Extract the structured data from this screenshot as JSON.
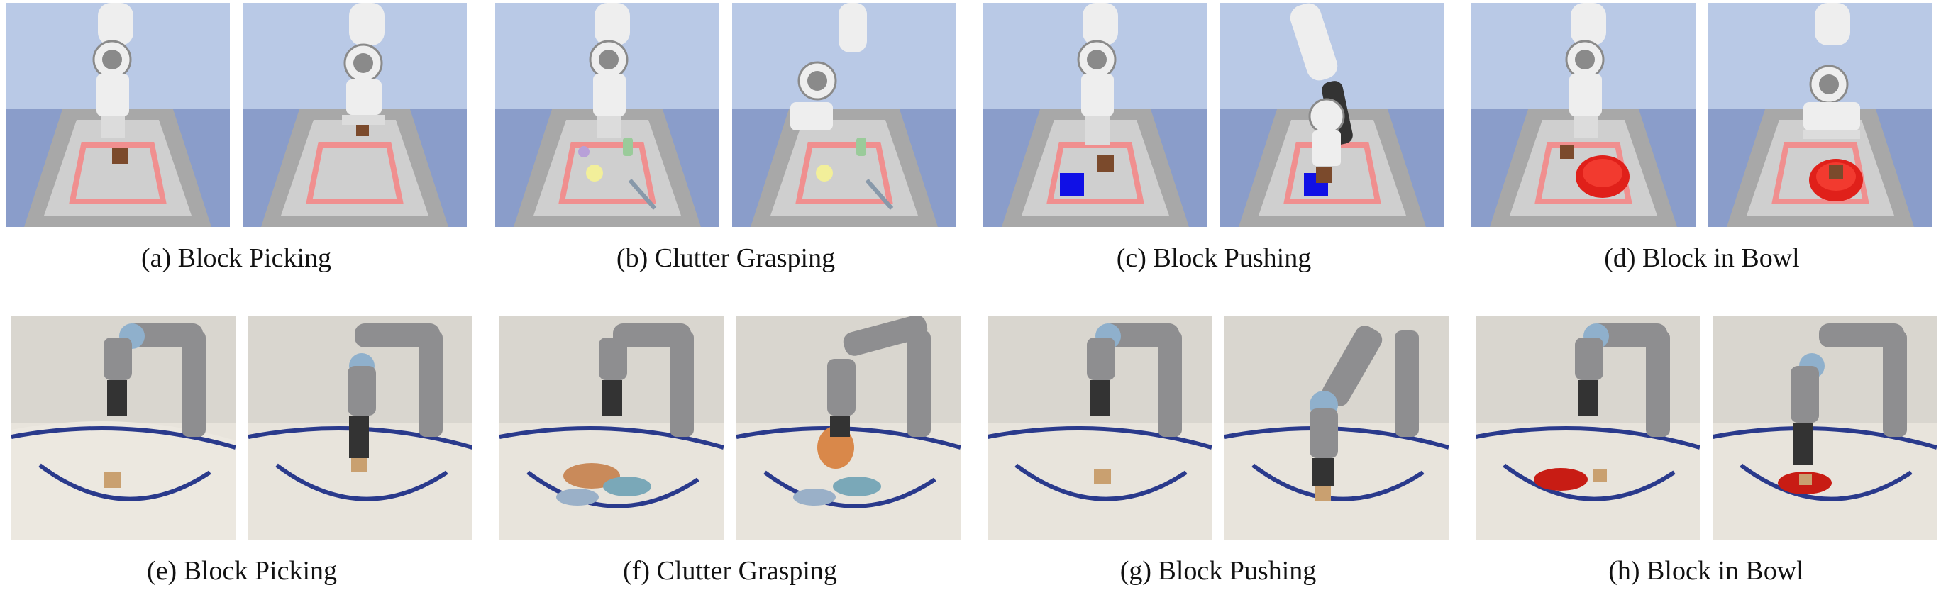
{
  "figure": {
    "simulation": {
      "captions": [
        {
          "label": "(a) Block Picking"
        },
        {
          "label": "(b) Clutter Grasping"
        },
        {
          "label": "(c) Block Pushing"
        },
        {
          "label": "(d) Block in Bowl"
        }
      ]
    },
    "real": {
      "captions": [
        {
          "label": "(e) Block Picking"
        },
        {
          "label": "(f) Clutter Grasping"
        },
        {
          "label": "(g) Block Pushing"
        },
        {
          "label": "(h) Block in Bowl"
        }
      ]
    }
  },
  "colors": {
    "sim_sky": "#b9c9e6",
    "sim_wall": "#7f93c4",
    "tray_floor": "#cfcfcf",
    "tray_rim": "#a8a8a8",
    "target_zone": "#f08f8f",
    "robot_body": "#eeeeee",
    "robot_joint": "#8a8a8a",
    "block": "#7b4a2c",
    "push_goal": "#1010e6",
    "bowl": "#e0201a",
    "real_wall": "#d9d6cf",
    "real_bed": "#e8e4dc",
    "real_border": "#2a3a8c",
    "real_robot_grey": "#8e8e90",
    "real_robot_blue": "#8fb0cc"
  }
}
